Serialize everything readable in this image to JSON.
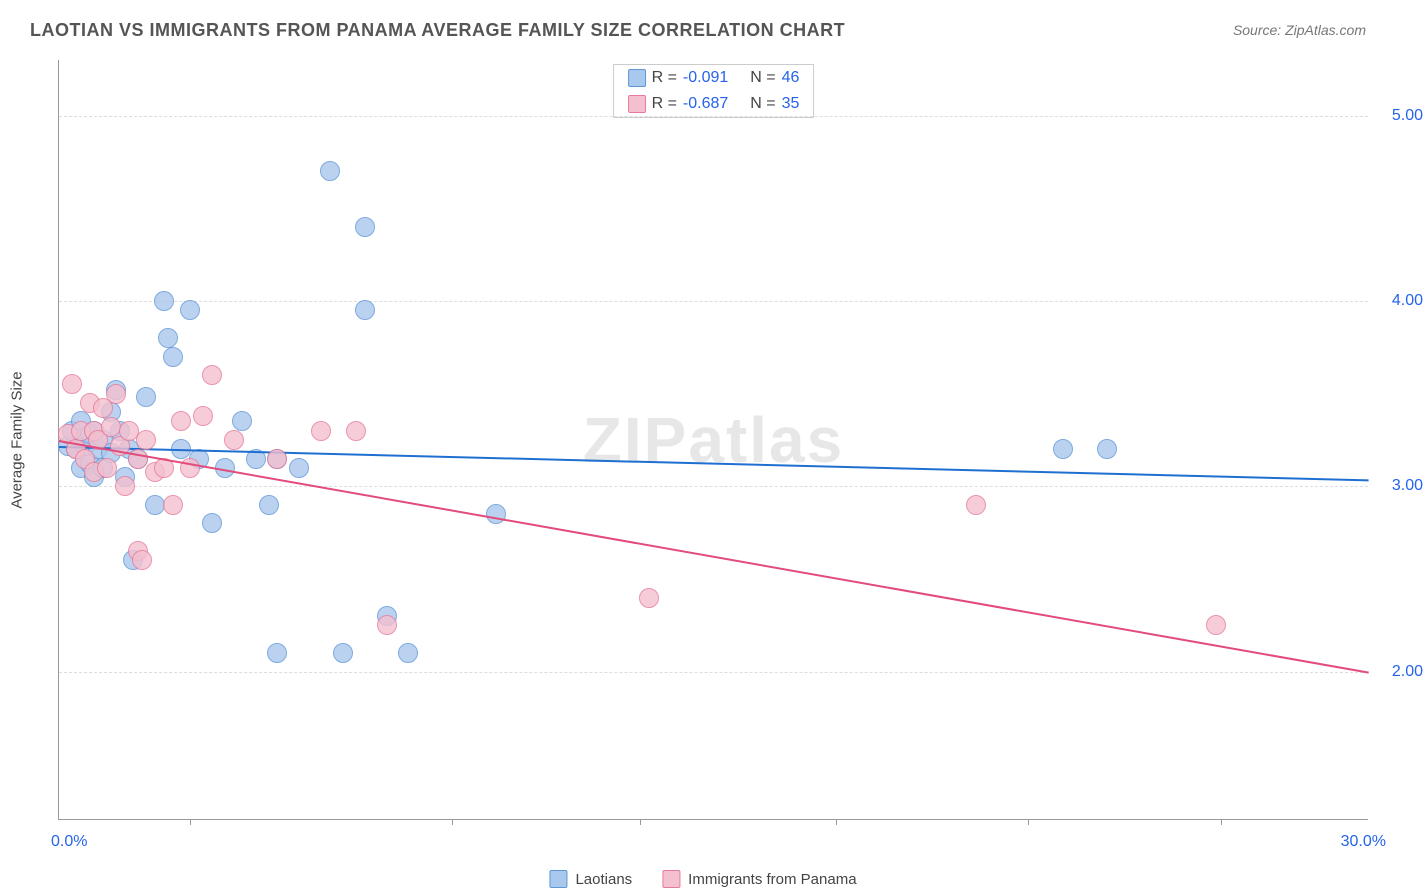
{
  "title": "LAOTIAN VS IMMIGRANTS FROM PANAMA AVERAGE FAMILY SIZE CORRELATION CHART",
  "source_label": "Source: ZipAtlas.com",
  "watermark": "ZIPatlas",
  "yaxis_label": "Average Family Size",
  "x": {
    "min": 0.0,
    "max": 30.0,
    "label_min": "0.0%",
    "label_max": "30.0%",
    "ticks_at": [
      3.0,
      9.0,
      13.3,
      17.8,
      22.2,
      26.6
    ]
  },
  "y": {
    "min": 1.2,
    "max": 5.3,
    "ticks": [
      2.0,
      3.0,
      4.0,
      5.0
    ],
    "tick_labels": [
      "2.00",
      "3.00",
      "4.00",
      "5.00"
    ]
  },
  "series": [
    {
      "name": "Laotians",
      "fill": "#a9c8ed",
      "stroke": "#5f96d6",
      "line": "#1f6fd1",
      "r_label": "R = ",
      "r_value": "-0.091",
      "n_label": "N = ",
      "n_value": "46",
      "marker_radius": 10,
      "trend": {
        "x1": 0.0,
        "y1": 3.22,
        "x2": 30.0,
        "y2": 3.04
      },
      "points": [
        [
          0.2,
          3.22
        ],
        [
          0.3,
          3.3
        ],
        [
          0.4,
          3.2
        ],
        [
          0.5,
          3.35
        ],
        [
          0.5,
          3.1
        ],
        [
          0.6,
          3.22
        ],
        [
          0.7,
          3.28
        ],
        [
          0.7,
          3.12
        ],
        [
          0.8,
          3.3
        ],
        [
          0.8,
          3.05
        ],
        [
          0.9,
          3.2
        ],
        [
          1.0,
          3.25
        ],
        [
          1.0,
          3.1
        ],
        [
          1.2,
          3.4
        ],
        [
          1.2,
          3.18
        ],
        [
          1.3,
          3.52
        ],
        [
          1.4,
          3.3
        ],
        [
          1.5,
          3.05
        ],
        [
          1.6,
          3.2
        ],
        [
          1.7,
          2.6
        ],
        [
          1.8,
          3.15
        ],
        [
          2.0,
          3.48
        ],
        [
          2.2,
          2.9
        ],
        [
          2.4,
          4.0
        ],
        [
          2.5,
          3.8
        ],
        [
          2.6,
          3.7
        ],
        [
          2.8,
          3.2
        ],
        [
          3.0,
          3.95
        ],
        [
          3.2,
          3.15
        ],
        [
          3.5,
          2.8
        ],
        [
          3.8,
          3.1
        ],
        [
          4.2,
          3.35
        ],
        [
          4.5,
          3.15
        ],
        [
          4.8,
          2.9
        ],
        [
          5.0,
          3.15
        ],
        [
          5.0,
          2.1
        ],
        [
          5.5,
          3.1
        ],
        [
          6.2,
          4.7
        ],
        [
          6.5,
          2.1
        ],
        [
          7.0,
          4.4
        ],
        [
          7.0,
          3.95
        ],
        [
          7.5,
          2.3
        ],
        [
          8.0,
          2.1
        ],
        [
          10.0,
          2.85
        ],
        [
          23.0,
          3.2
        ],
        [
          24.0,
          3.2
        ]
      ]
    },
    {
      "name": "Immigrants from Panama",
      "fill": "#f4c0cf",
      "stroke": "#e67a9a",
      "line": "#e24b7a",
      "r_label": "R = ",
      "r_value": "-0.687",
      "n_label": "N = ",
      "n_value": "35",
      "marker_radius": 10,
      "trend": {
        "x1": 0.0,
        "y1": 3.25,
        "x2": 30.0,
        "y2": 2.0
      },
      "points": [
        [
          0.2,
          3.28
        ],
        [
          0.3,
          3.55
        ],
        [
          0.4,
          3.2
        ],
        [
          0.5,
          3.3
        ],
        [
          0.6,
          3.15
        ],
        [
          0.7,
          3.45
        ],
        [
          0.8,
          3.3
        ],
        [
          0.8,
          3.08
        ],
        [
          0.9,
          3.25
        ],
        [
          1.0,
          3.42
        ],
        [
          1.1,
          3.1
        ],
        [
          1.2,
          3.32
        ],
        [
          1.3,
          3.5
        ],
        [
          1.4,
          3.22
        ],
        [
          1.5,
          3.0
        ],
        [
          1.6,
          3.3
        ],
        [
          1.8,
          3.15
        ],
        [
          1.8,
          2.65
        ],
        [
          1.9,
          2.6
        ],
        [
          2.0,
          3.25
        ],
        [
          2.2,
          3.08
        ],
        [
          2.4,
          3.1
        ],
        [
          2.6,
          2.9
        ],
        [
          2.8,
          3.35
        ],
        [
          3.0,
          3.1
        ],
        [
          3.3,
          3.38
        ],
        [
          3.5,
          3.6
        ],
        [
          4.0,
          3.25
        ],
        [
          5.0,
          3.15
        ],
        [
          6.0,
          3.3
        ],
        [
          6.8,
          3.3
        ],
        [
          7.5,
          2.25
        ],
        [
          13.5,
          2.4
        ],
        [
          21.0,
          2.9
        ],
        [
          26.5,
          2.25
        ]
      ]
    }
  ],
  "colors": {
    "text": "#555",
    "axis": "#999",
    "grid": "#dddddd",
    "value": "#2563eb",
    "watermark": "#bbbbbb"
  }
}
